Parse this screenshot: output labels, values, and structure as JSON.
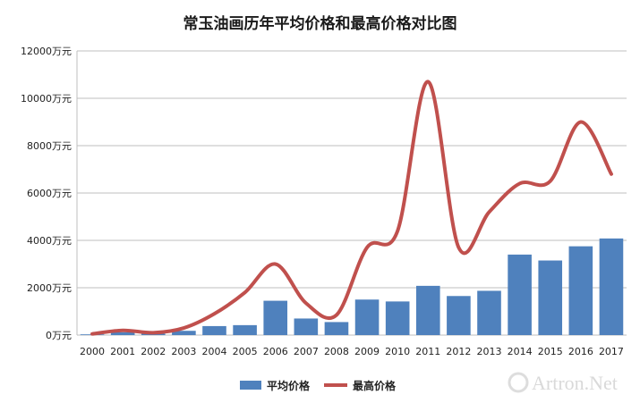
{
  "chart_data": {
    "type": "bar",
    "title": "常玉油画历年平均价格和最高价格对比图",
    "xlabel": "",
    "ylabel": "",
    "ylim": [
      0,
      12000
    ],
    "yticks": [
      0,
      2000,
      4000,
      6000,
      8000,
      10000,
      12000
    ],
    "ytick_labels": [
      "0万元",
      "2000万元",
      "4000万元",
      "6000万元",
      "8000万元",
      "10000万元",
      "12000万元"
    ],
    "grid": true,
    "legend_position": "bottom",
    "categories": [
      "2000",
      "2001",
      "2002",
      "2003",
      "2004",
      "2005",
      "2006",
      "2007",
      "2008",
      "2009",
      "2010",
      "2011",
      "2012",
      "2013",
      "2014",
      "2015",
      "2016",
      "2017"
    ],
    "series": [
      {
        "name": "平均价格",
        "kind": "bar",
        "color": "#4f81bd",
        "values": [
          30,
          120,
          60,
          180,
          380,
          420,
          1450,
          700,
          550,
          1500,
          1420,
          2080,
          1650,
          1870,
          3400,
          3150,
          3750,
          4080
        ]
      },
      {
        "name": "最高价格",
        "kind": "line",
        "color": "#c0504d",
        "values": [
          50,
          200,
          100,
          300,
          900,
          1800,
          3000,
          1350,
          850,
          3700,
          4400,
          10700,
          3700,
          5200,
          6400,
          6500,
          9000,
          6800
        ]
      }
    ]
  },
  "watermark": "Artron.Net"
}
